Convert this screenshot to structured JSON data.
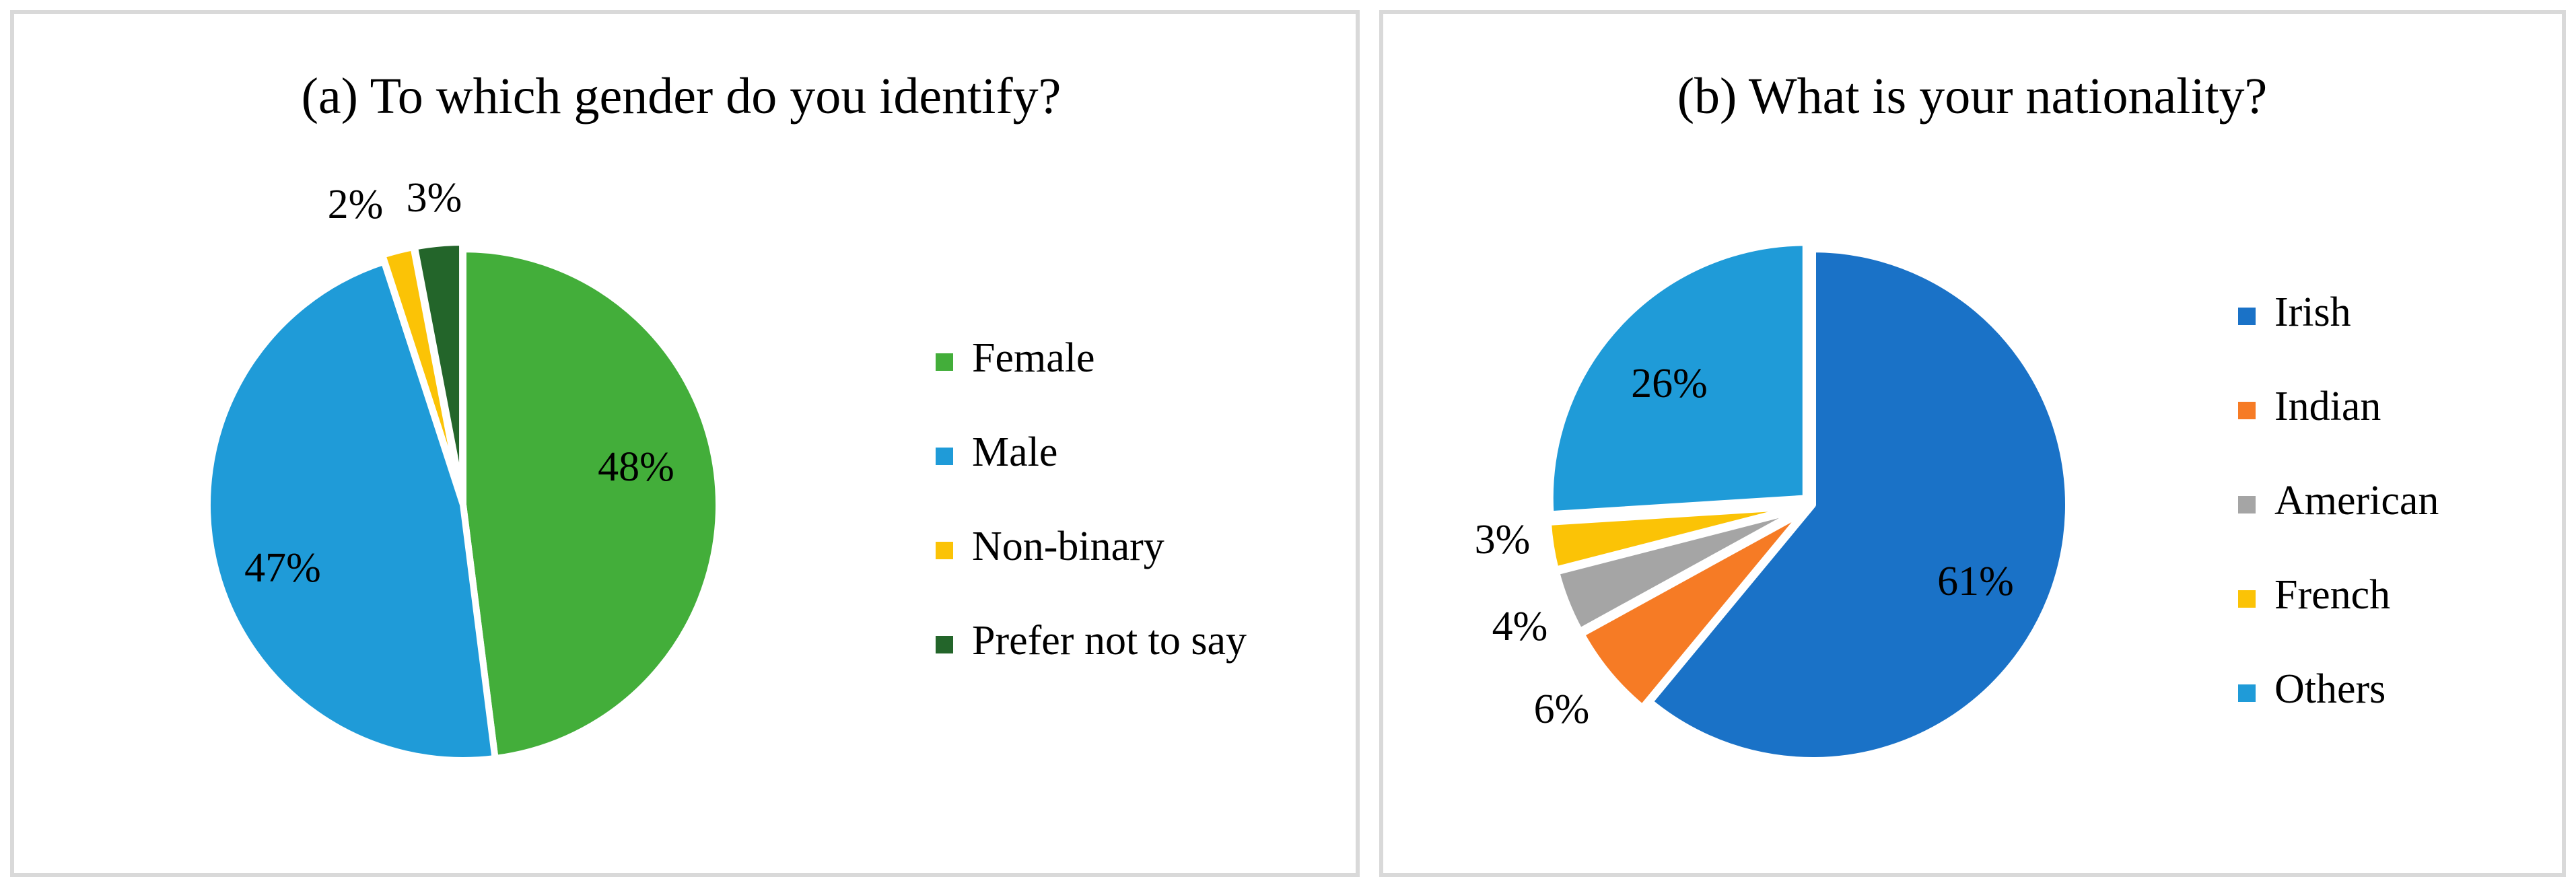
{
  "chart_data": [
    {
      "type": "pie",
      "title": "(a) To which gender do you identify?",
      "categories": [
        "Female",
        "Male",
        "Non-binary",
        "Prefer not to say"
      ],
      "values": [
        48,
        47,
        2,
        3
      ],
      "labels": [
        "48%",
        "47%",
        "2%",
        "3%"
      ],
      "colors": [
        "#43ae3a",
        "#1f9bd8",
        "#fbc306",
        "#23652a"
      ],
      "legend_position": "right"
    },
    {
      "type": "pie",
      "title": "(b) What is your nationality?",
      "categories": [
        "Irish",
        "Indian",
        "American",
        "French",
        "Others"
      ],
      "values": [
        61,
        6,
        4,
        3,
        26
      ],
      "labels": [
        "61%",
        "6%",
        "4%",
        "3%",
        "26%"
      ],
      "colors": [
        "#1a72c7",
        "#f67b25",
        "#a5a5a5",
        "#fbc306",
        "#1f9bd8"
      ],
      "legend_position": "right"
    }
  ]
}
